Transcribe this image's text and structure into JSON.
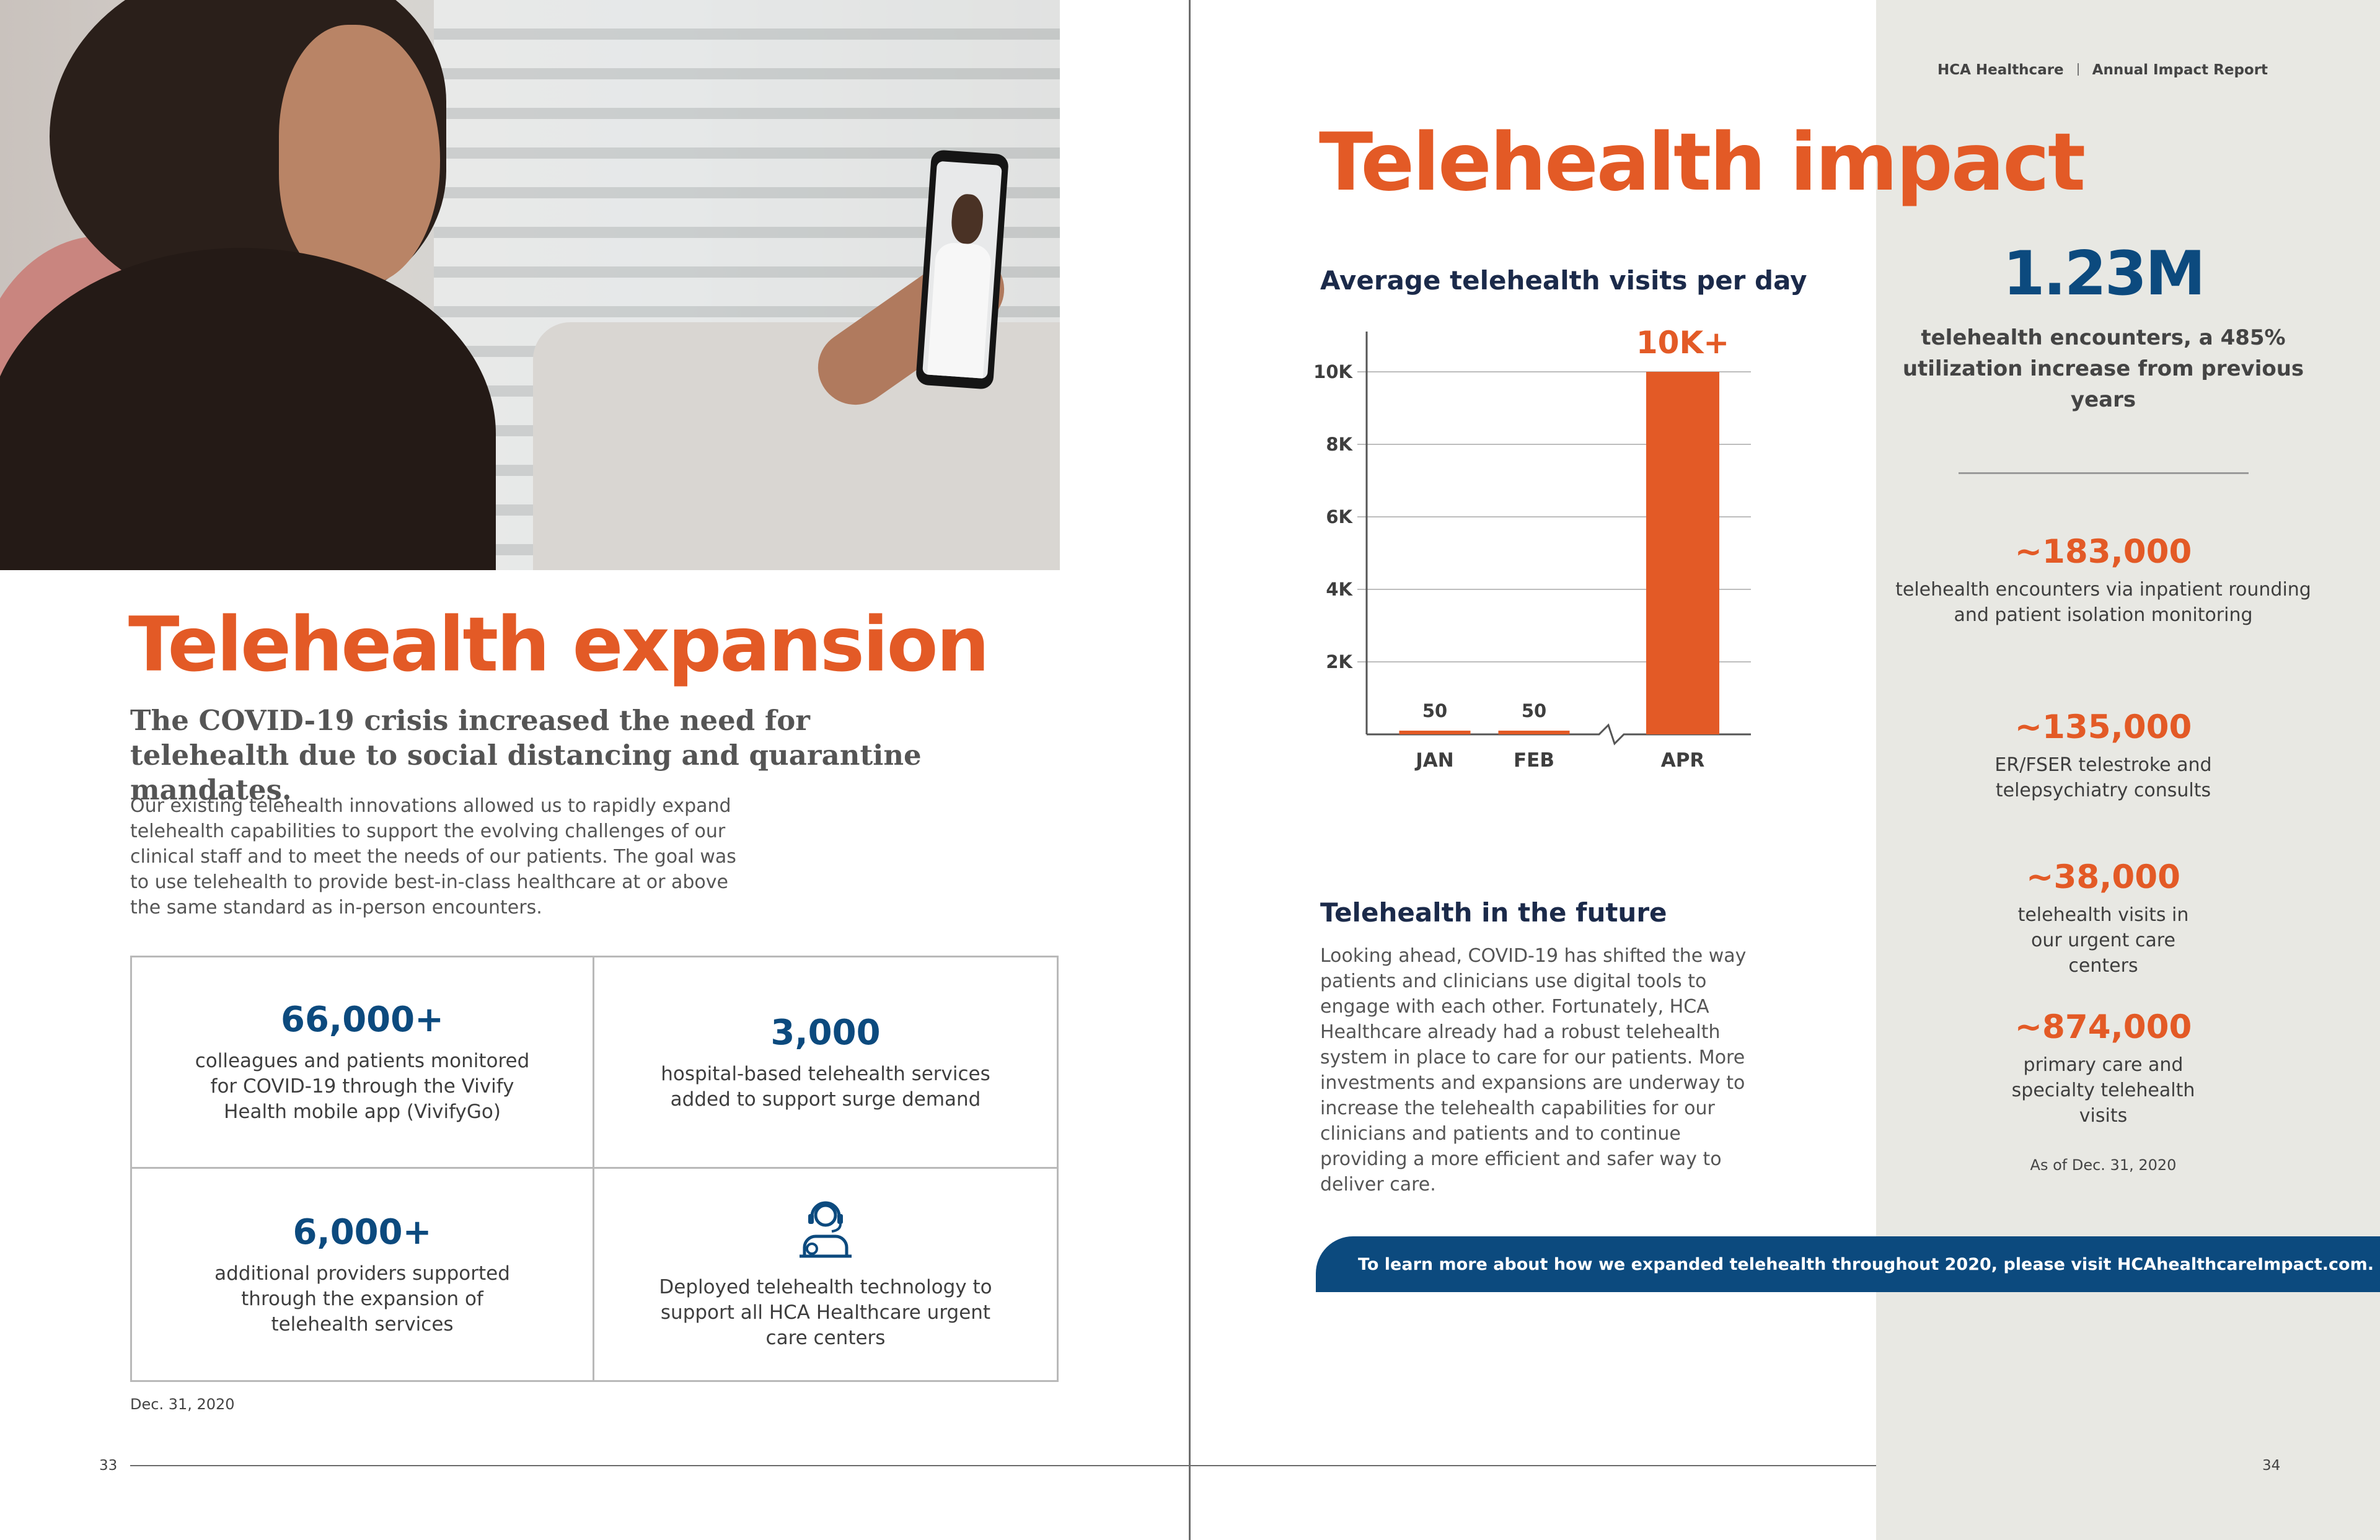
{
  "colors": {
    "accent": "#e35a26",
    "navy": "#0c4a7e",
    "sidebar": "#e8e8e3"
  },
  "running_head": {
    "company": "HCA Healthcare",
    "report": "Annual Impact Report"
  },
  "left": {
    "title": "Telehealth expansion",
    "lead": "The COVID-19 crisis increased the need for telehealth due to social distancing and quarantine mandates.",
    "body": "Our existing telehealth innovations allowed us to rapidly expand telehealth capabilities to support the evolving challenges of our clinical staff and to meet the needs of our patients. The goal was to use telehealth to provide best-in-class healthcare at or above the same standard as in-person encounters.",
    "stats": [
      {
        "value": "66,000+",
        "text": "colleagues and patients monitored for COVID-19 through the Vivify Health mobile app (VivifyGo)"
      },
      {
        "value": "3,000",
        "text": "hospital-based telehealth services added to support surge demand"
      },
      {
        "value": "6,000+",
        "text": "additional providers supported through the expansion of telehealth services"
      },
      {
        "icon": "headset-agent-icon",
        "text": "Deployed telehealth technology to support all HCA Healthcare urgent care centers"
      }
    ],
    "note": "Dec. 31, 2020",
    "page_number": "33"
  },
  "right": {
    "title": "Telehealth impact",
    "chart_title": "Average telehealth visits per day",
    "future_title": "Telehealth in the future",
    "future_body": "Looking ahead, COVID-19 has shifted the way patients and clinicians use digital tools to engage with each other. Fortunately, HCA Healthcare already had a robust telehealth system in place to care for our patients. More investments and expansions are underway to increase the telehealth capabilities for our clinicians and patients and to continue providing a more efficient and safer way to deliver care.",
    "cta": "To learn more about how we expanded telehealth throughout 2020, please visit HCAhealthcareImpact.com.",
    "page_number": "34"
  },
  "sidebar": {
    "big_value": "1.23M",
    "big_text": "telehealth encounters, a 485% utilization increase from previous years",
    "stats": [
      {
        "value": "~183,000",
        "text": "telehealth encounters via inpatient rounding and patient isolation monitoring"
      },
      {
        "value": "~135,000",
        "text": "ER/FSER telestroke and telepsychiatry consults"
      },
      {
        "value": "~38,000",
        "text": "telehealth visits in our urgent care centers"
      },
      {
        "value": "~874,000",
        "text": "primary care and specialty telehealth visits"
      }
    ],
    "as_of": "As of Dec. 31, 2020"
  },
  "chart_data": {
    "type": "bar",
    "title": "Average telehealth visits per day",
    "categories": [
      "JAN",
      "FEB",
      "APR"
    ],
    "values": [
      50,
      50,
      10000
    ],
    "data_labels": [
      "50",
      "50",
      "10K+"
    ],
    "yticks": [
      "2K",
      "4K",
      "6K",
      "8K",
      "10K"
    ],
    "ylim": [
      0,
      10000
    ],
    "axis_break_between": [
      "FEB",
      "APR"
    ],
    "bar_color": "#e35a26",
    "grid": true
  }
}
